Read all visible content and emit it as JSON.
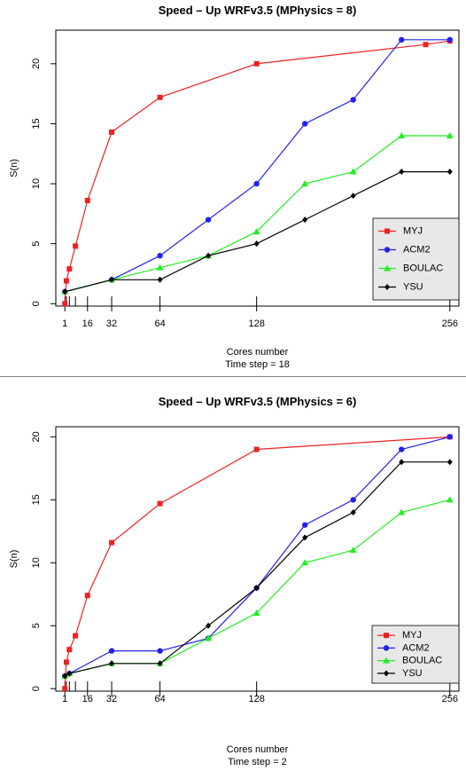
{
  "chart_data": [
    {
      "type": "line",
      "title": "Speed – Up WRFv3.5 (MPhysics = 8)",
      "xlabel": "Cores number",
      "subtitle": "Time step = 18",
      "ylabel": "S(n)",
      "xlim": [
        -5,
        262
      ],
      "ylim": [
        -0.2,
        22.8
      ],
      "x_ticks": [
        1,
        16,
        32,
        64,
        128,
        256
      ],
      "y_ticks": [
        0,
        5,
        10,
        15,
        20
      ],
      "rug": [
        1,
        2,
        4,
        8,
        16,
        32,
        64,
        128,
        256
      ],
      "legend_position": "bottom-right",
      "series": [
        {
          "name": "MYJ",
          "color": "#ee2222",
          "marker": "square",
          "x": [
            1,
            2,
            4,
            8,
            16,
            32,
            64,
            128,
            240,
            256
          ],
          "y": [
            0,
            1.9,
            2.9,
            4.8,
            8.6,
            14.3,
            17.2,
            20,
            21.6,
            21.9
          ]
        },
        {
          "name": "ACM2",
          "color": "#2222ee",
          "marker": "circle",
          "x": [
            1,
            32,
            64,
            96,
            128,
            160,
            192,
            224,
            256
          ],
          "y": [
            1,
            2,
            4,
            7,
            10,
            15,
            17,
            22,
            22
          ]
        },
        {
          "name": "BOULAC",
          "color": "#22ee22",
          "marker": "triangle",
          "x": [
            1,
            32,
            64,
            96,
            128,
            160,
            192,
            224,
            256
          ],
          "y": [
            1,
            2,
            3,
            4,
            6,
            10,
            11,
            14,
            14
          ]
        },
        {
          "name": "YSU",
          "color": "#000000",
          "marker": "diamond",
          "x": [
            1,
            32,
            64,
            96,
            128,
            160,
            192,
            224,
            256
          ],
          "y": [
            1,
            2,
            2,
            4,
            5,
            7,
            9,
            11,
            11
          ]
        }
      ]
    },
    {
      "type": "line",
      "title": "Speed – Up WRFv3.5 (MPhysics = 6)",
      "xlabel": "Cores number",
      "subtitle": "Time step = 2",
      "ylabel": "S(n)",
      "xlim": [
        -5,
        262
      ],
      "ylim": [
        -0.2,
        20.8
      ],
      "x_ticks": [
        1,
        16,
        32,
        64,
        128,
        256
      ],
      "y_ticks": [
        0,
        5,
        10,
        15,
        20
      ],
      "rug": [
        1,
        2,
        4,
        8,
        16,
        32,
        64,
        128,
        256
      ],
      "legend_position": "bottom-right",
      "series": [
        {
          "name": "MYJ",
          "color": "#ee2222",
          "marker": "square",
          "x": [
            1,
            2,
            4,
            8,
            16,
            32,
            64,
            128,
            256
          ],
          "y": [
            0,
            2.1,
            3.1,
            4.2,
            7.4,
            11.6,
            14.7,
            19,
            20
          ]
        },
        {
          "name": "ACM2",
          "color": "#2222ee",
          "marker": "circle",
          "x": [
            1,
            4,
            32,
            64,
            96,
            128,
            160,
            192,
            224,
            256
          ],
          "y": [
            1,
            1.2,
            3,
            3,
            4,
            8,
            13,
            15,
            19,
            20
          ]
        },
        {
          "name": "BOULAC",
          "color": "#22ee22",
          "marker": "triangle",
          "x": [
            1,
            4,
            32,
            64,
            96,
            128,
            160,
            192,
            224,
            256
          ],
          "y": [
            1,
            1.2,
            2,
            2,
            4,
            6,
            10,
            11,
            14,
            15
          ]
        },
        {
          "name": "YSU",
          "color": "#000000",
          "marker": "diamond",
          "x": [
            1,
            4,
            32,
            64,
            96,
            128,
            160,
            192,
            224,
            256
          ],
          "y": [
            1,
            1.2,
            2,
            2,
            5,
            8,
            12,
            14,
            18,
            18
          ]
        }
      ]
    }
  ]
}
